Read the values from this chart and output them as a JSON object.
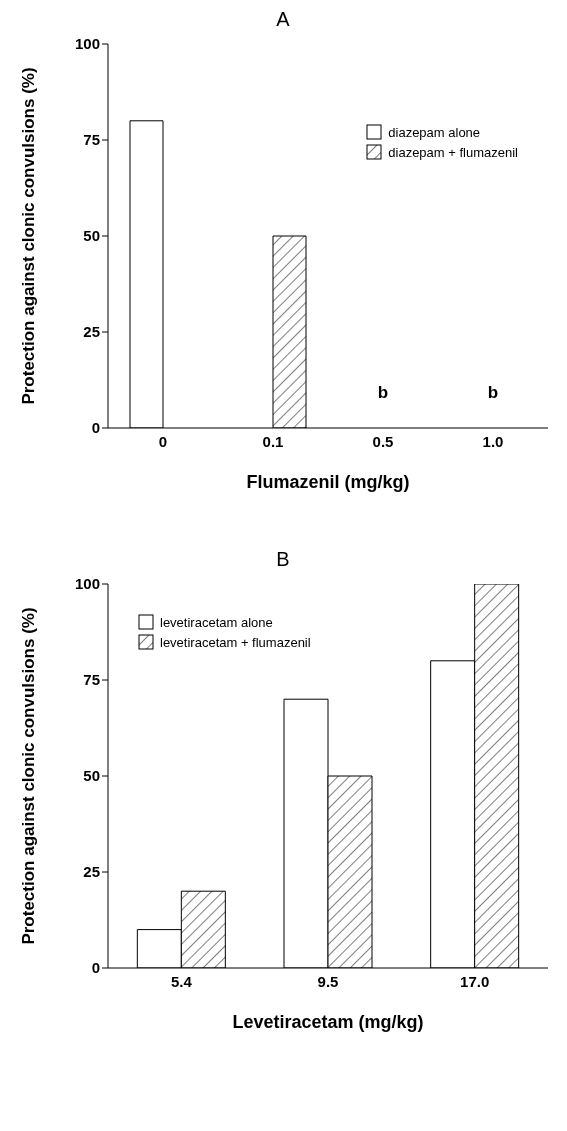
{
  "chart_data": [
    {
      "type": "bar",
      "title": "A",
      "xlabel": "Flumazenil (mg/kg)",
      "ylabel": "Protection against clonic convulsions (%)",
      "categories": [
        "0",
        "0.1",
        "0.5",
        "1.0"
      ],
      "series": [
        {
          "name": "diazepam alone",
          "color": "#ffffff",
          "values": [
            80,
            null,
            null,
            null
          ]
        },
        {
          "name": "diazepam + flumazenil",
          "color": "#000000",
          "values": [
            null,
            50,
            0,
            0
          ]
        }
      ],
      "ylim": [
        0,
        100
      ],
      "yticks": [
        0,
        25,
        50,
        75,
        100
      ],
      "grid": false,
      "legend": "top right",
      "annotations": [
        {
          "text": "b",
          "x": "0.5",
          "y": 0
        },
        {
          "text": "b",
          "x": "1.0",
          "y": 0
        }
      ]
    },
    {
      "type": "bar",
      "title": "B",
      "xlabel": "Levetiracetam (mg/kg)",
      "ylabel": "Protection against clonic convulsions (%)",
      "categories": [
        "5.4",
        "9.5",
        "17.0"
      ],
      "series": [
        {
          "name": "levetiracetam alone",
          "color": "#ffffff",
          "values": [
            10,
            70,
            80
          ]
        },
        {
          "name": "levetiracetam + flumazenil",
          "color": "#000000",
          "values": [
            20,
            50,
            100
          ]
        }
      ],
      "ylim": [
        0,
        100
      ],
      "yticks": [
        0,
        25,
        50,
        75,
        100
      ],
      "grid": false,
      "legend": "top left"
    }
  ]
}
